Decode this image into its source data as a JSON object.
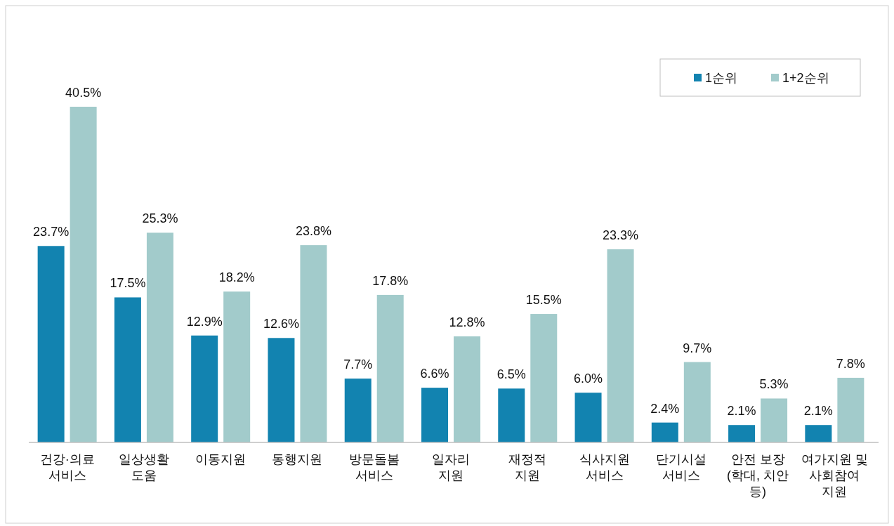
{
  "chart_data": {
    "type": "bar",
    "categories": [
      "건강·의료\n서비스",
      "일상생활\n도움",
      "이동지원",
      "동행지원",
      "방문돌봄\n서비스",
      "일자리\n지원",
      "재정적\n지원",
      "식사지원\n서비스",
      "단기시설\n서비스",
      "안전 보장\n(학대, 치안\n등)",
      "여가지원 및\n사회참여\n지원"
    ],
    "series": [
      {
        "name": "1순위",
        "color": "#1283b0",
        "values": [
          23.7,
          17.5,
          12.9,
          12.6,
          7.7,
          6.6,
          6.5,
          6.0,
          2.4,
          2.1,
          2.1
        ],
        "value_labels": [
          "23.7%",
          "17.5%",
          "12.9%",
          "12.6%",
          "7.7%",
          "6.6%",
          "6.5%",
          "6.0%",
          "2.4%",
          "2.1%",
          "2.1%"
        ]
      },
      {
        "name": "1+2순위",
        "color": "#a2cbcb",
        "values": [
          40.5,
          25.3,
          18.2,
          23.8,
          17.8,
          12.8,
          15.5,
          23.3,
          9.7,
          5.3,
          7.8
        ],
        "value_labels": [
          "40.5%",
          "25.3%",
          "18.2%",
          "23.8%",
          "17.8%",
          "12.8%",
          "15.5%",
          "23.3%",
          "9.7%",
          "5.3%",
          "7.8%"
        ]
      }
    ],
    "legend": "top right"
  }
}
